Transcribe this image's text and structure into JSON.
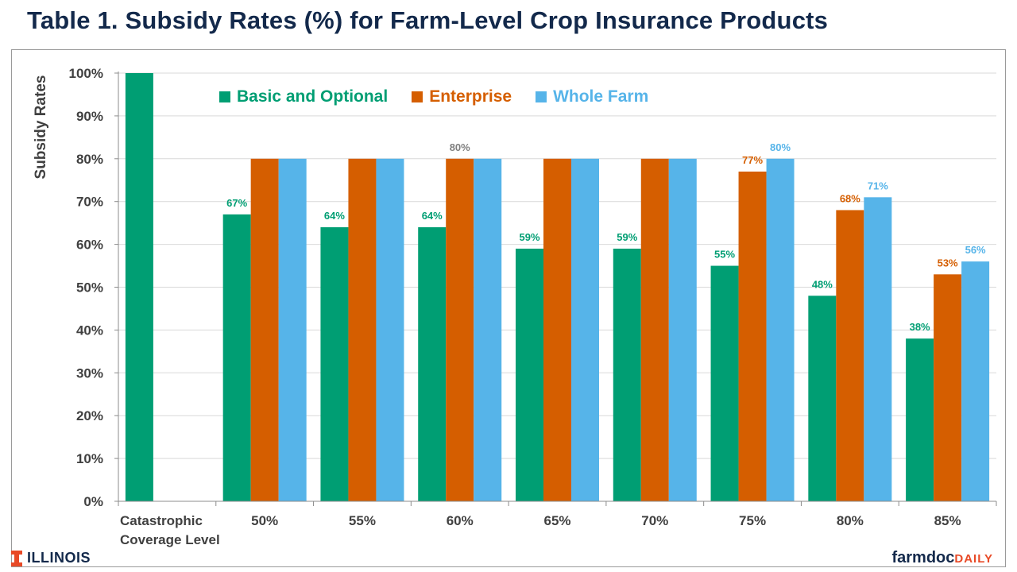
{
  "title": "Table 1. Subsidy Rates (%) for Farm-Level Crop Insurance Products",
  "footer": {
    "org_logo": "ILLINOIS",
    "brand_part1": "farmdoc",
    "brand_part2": "DAILY"
  },
  "colors": {
    "basic": "#009e73",
    "enterprise": "#d55e00",
    "whole_farm": "#56b4e9",
    "title": "#13294b",
    "label_gray": "#7f7f7f",
    "axis_text": "#404040"
  },
  "chart_data": {
    "type": "bar",
    "title": "Table 1. Subsidy Rates (%) for Farm-Level Crop Insurance Products",
    "xlabel": "",
    "ylabel": "Subsidy Rates",
    "ylim": [
      0,
      100
    ],
    "yticks": [
      "0%",
      "10%",
      "20%",
      "30%",
      "40%",
      "50%",
      "60%",
      "70%",
      "80%",
      "90%",
      "100%"
    ],
    "grid": true,
    "legend_position": "top",
    "categories": [
      [
        "Catastrophic",
        "Coverage Level"
      ],
      [
        "50%"
      ],
      [
        "55%"
      ],
      [
        "60%"
      ],
      [
        "65%"
      ],
      [
        "70%"
      ],
      [
        "75%"
      ],
      [
        "80%"
      ],
      [
        "85%"
      ]
    ],
    "series": [
      {
        "name": "Basic and Optional",
        "color": "#009e73",
        "values": [
          100,
          67,
          64,
          64,
          59,
          59,
          55,
          48,
          38
        ]
      },
      {
        "name": "Enterprise",
        "color": "#d55e00",
        "values": [
          null,
          80,
          80,
          80,
          80,
          80,
          77,
          68,
          53
        ]
      },
      {
        "name": "Whole Farm",
        "color": "#56b4e9",
        "values": [
          null,
          80,
          80,
          80,
          80,
          80,
          80,
          71,
          56
        ]
      }
    ],
    "data_labels": [
      {
        "category": 1,
        "series": 0,
        "text": "67%",
        "color": "#009e73"
      },
      {
        "category": 2,
        "series": 0,
        "text": "64%",
        "color": "#009e73"
      },
      {
        "category": 3,
        "series": 0,
        "text": "64%",
        "color": "#009e73"
      },
      {
        "category": 3,
        "series": 1,
        "text": "80%",
        "color": "#7f7f7f",
        "centered_on_group": true
      },
      {
        "category": 4,
        "series": 0,
        "text": "59%",
        "color": "#009e73"
      },
      {
        "category": 5,
        "series": 0,
        "text": "59%",
        "color": "#009e73"
      },
      {
        "category": 6,
        "series": 0,
        "text": "55%",
        "color": "#009e73"
      },
      {
        "category": 6,
        "series": 1,
        "text": "77%",
        "color": "#d55e00"
      },
      {
        "category": 6,
        "series": 2,
        "text": "80%",
        "color": "#56b4e9"
      },
      {
        "category": 7,
        "series": 0,
        "text": "48%",
        "color": "#009e73"
      },
      {
        "category": 7,
        "series": 1,
        "text": "68%",
        "color": "#d55e00"
      },
      {
        "category": 7,
        "series": 2,
        "text": "71%",
        "color": "#56b4e9"
      },
      {
        "category": 8,
        "series": 0,
        "text": "38%",
        "color": "#009e73"
      },
      {
        "category": 8,
        "series": 1,
        "text": "53%",
        "color": "#d55e00"
      },
      {
        "category": 8,
        "series": 2,
        "text": "56%",
        "color": "#56b4e9"
      }
    ]
  }
}
